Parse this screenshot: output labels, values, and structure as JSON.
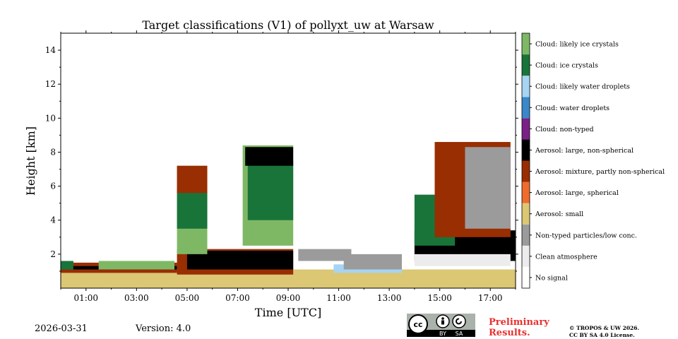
{
  "chart_data": {
    "type": "heatmap",
    "title": "Target classifications (V1) of pollyxt_uw at Warsaw",
    "xlabel": "Time [UTC]",
    "ylabel": "Height [km]",
    "xlim": [
      0.0,
      18.0
    ],
    "ylim": [
      0.0,
      15.0
    ],
    "x_ticks": [
      1,
      3,
      5,
      7,
      9,
      11,
      13,
      15,
      17
    ],
    "x_tick_labels": [
      "01:00",
      "03:00",
      "05:00",
      "07:00",
      "09:00",
      "11:00",
      "13:00",
      "15:00",
      "17:00"
    ],
    "y_ticks": [
      2,
      4,
      6,
      8,
      10,
      12,
      14
    ],
    "y_tick_labels": [
      "2",
      "4",
      "6",
      "8",
      "10",
      "12",
      "14"
    ],
    "classes": [
      {
        "label": "No signal",
        "color": "#ffffff"
      },
      {
        "label": "Clean atmosphere",
        "color": "#ececec"
      },
      {
        "label": "Non-typed particles/low conc.",
        "color": "#9b9b9b"
      },
      {
        "label": "Aerosol: small",
        "color": "#dbc774"
      },
      {
        "label": "Aerosol: large, spherical",
        "color": "#ef6c2e"
      },
      {
        "label": "Aerosol: mixture, partly non-spherical",
        "color": "#992e02"
      },
      {
        "label": "Aerosol: large, non-spherical",
        "color": "#000000"
      },
      {
        "label": "Cloud: non-typed",
        "color": "#7b2087"
      },
      {
        "label": "Cloud: water droplets",
        "color": "#3a88c8"
      },
      {
        "label": "Cloud: likely water droplets",
        "color": "#a7d4f2"
      },
      {
        "label": "Cloud: ice crystals",
        "color": "#19743a"
      },
      {
        "label": "Cloud: likely ice crystals",
        "color": "#7fb865"
      }
    ],
    "regions": [
      {
        "class": "Aerosol: small",
        "t0": 0.0,
        "t1": 18.0,
        "z0": 0.0,
        "z1": 1.1
      },
      {
        "class": "Aerosol: mixture, partly non-spherical",
        "t0": 0.0,
        "t1": 4.6,
        "z0": 0.9,
        "z1": 1.5
      },
      {
        "class": "Aerosol: large, non-spherical",
        "t0": 0.0,
        "t1": 4.6,
        "z0": 1.1,
        "z1": 1.3
      },
      {
        "class": "Cloud: ice crystals",
        "t0": 0.0,
        "t1": 0.5,
        "z0": 1.1,
        "z1": 1.6
      },
      {
        "class": "Cloud: likely ice crystals",
        "t0": 1.5,
        "t1": 4.5,
        "z0": 1.1,
        "z1": 1.6
      },
      {
        "class": "Aerosol: mixture, partly non-spherical",
        "t0": 4.6,
        "t1": 9.2,
        "z0": 0.8,
        "z1": 2.3
      },
      {
        "class": "Aerosol: large, non-spherical",
        "t0": 5.0,
        "t1": 9.2,
        "z0": 1.1,
        "z1": 2.2
      },
      {
        "class": "Cloud: likely ice crystals",
        "t0": 4.6,
        "t1": 5.8,
        "z0": 2.0,
        "z1": 7.2
      },
      {
        "class": "Cloud: ice crystals",
        "t0": 4.6,
        "t1": 5.8,
        "z0": 3.5,
        "z1": 6.0
      },
      {
        "class": "Aerosol: mixture, partly non-spherical",
        "t0": 4.6,
        "t1": 5.8,
        "z0": 5.6,
        "z1": 7.2
      },
      {
        "class": "Cloud: likely ice crystals",
        "t0": 7.2,
        "t1": 9.2,
        "z0": 2.5,
        "z1": 8.4
      },
      {
        "class": "Cloud: ice crystals",
        "t0": 7.4,
        "t1": 9.2,
        "z0": 4.0,
        "z1": 7.5
      },
      {
        "class": "Aerosol: large, non-spherical",
        "t0": 7.3,
        "t1": 9.2,
        "z0": 7.2,
        "z1": 8.3
      },
      {
        "class": "Non-typed particles/low conc.",
        "t0": 9.4,
        "t1": 11.5,
        "z0": 1.6,
        "z1": 2.3
      },
      {
        "class": "Cloud: likely water droplets",
        "t0": 10.8,
        "t1": 13.5,
        "z0": 0.9,
        "z1": 1.4
      },
      {
        "class": "Non-typed particles/low conc.",
        "t0": 11.2,
        "t1": 13.5,
        "z0": 1.1,
        "z1": 2.0
      },
      {
        "class": "Aerosol: large, non-spherical",
        "t0": 14.0,
        "t1": 18.0,
        "z0": 1.6,
        "z1": 3.4
      },
      {
        "class": "Clean atmosphere",
        "t0": 14.0,
        "t1": 17.8,
        "z0": 1.3,
        "z1": 2.0
      },
      {
        "class": "Cloud: ice crystals",
        "t0": 14.0,
        "t1": 15.6,
        "z0": 2.5,
        "z1": 5.5
      },
      {
        "class": "Aerosol: mixture, partly non-spherical",
        "t0": 14.8,
        "t1": 17.8,
        "z0": 3.0,
        "z1": 8.6
      },
      {
        "class": "Non-typed particles/low conc.",
        "t0": 16.0,
        "t1": 17.8,
        "z0": 3.5,
        "z1": 8.3
      }
    ]
  },
  "footer": {
    "date": "2026-03-31",
    "version": "Version: 4.0",
    "preliminary": [
      "Preliminary",
      "Results."
    ],
    "copyright": [
      "© TROPOS & UW 2026.",
      "CC BY SA 4.0 License."
    ],
    "license_badge": {
      "by": "BY",
      "sa": "SA"
    }
  }
}
